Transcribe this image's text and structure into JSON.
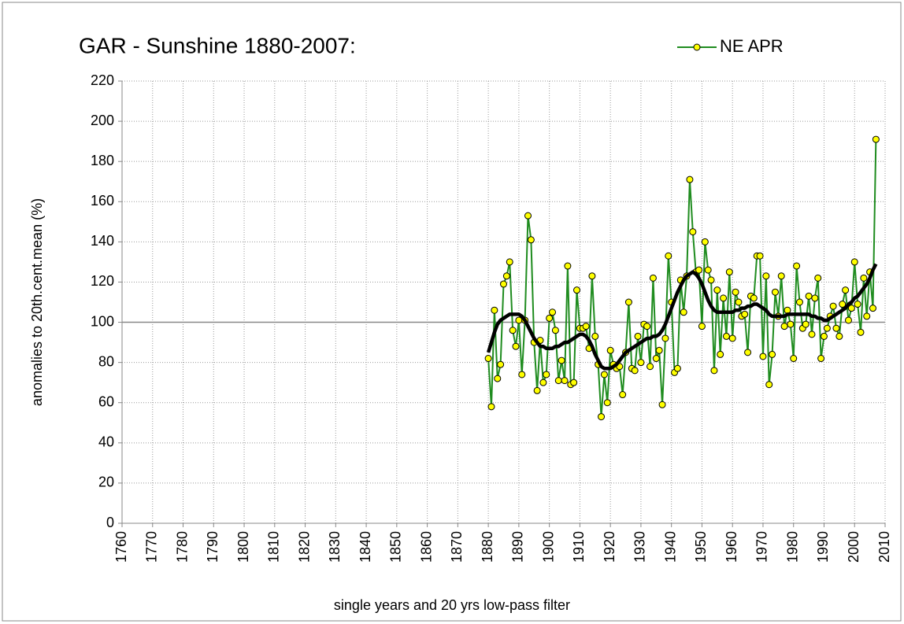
{
  "chart_data": {
    "type": "line",
    "title": "GAR - Sunshine 1880-2007:",
    "xlabel": "single years and 20 yrs low-pass filter",
    "ylabel": "anomalies to 20th.cent.mean (%)",
    "xlim": [
      1760,
      2010
    ],
    "xticks": [
      1760,
      1770,
      1780,
      1790,
      1800,
      1810,
      1820,
      1830,
      1840,
      1850,
      1860,
      1870,
      1880,
      1890,
      1900,
      1910,
      1920,
      1930,
      1940,
      1950,
      1960,
      1970,
      1980,
      1990,
      2000,
      2010
    ],
    "ylim": [
      0,
      220
    ],
    "yticks": [
      0,
      20,
      40,
      60,
      80,
      100,
      120,
      140,
      160,
      180,
      200,
      220
    ],
    "grid": true,
    "reference_line": 100,
    "legend": "top-right",
    "x": [
      1880,
      1881,
      1882,
      1883,
      1884,
      1885,
      1886,
      1887,
      1888,
      1889,
      1890,
      1891,
      1892,
      1893,
      1894,
      1895,
      1896,
      1897,
      1898,
      1899,
      1900,
      1901,
      1902,
      1903,
      1904,
      1905,
      1906,
      1907,
      1908,
      1909,
      1910,
      1911,
      1912,
      1913,
      1914,
      1915,
      1916,
      1917,
      1918,
      1919,
      1920,
      1921,
      1922,
      1923,
      1924,
      1925,
      1926,
      1927,
      1928,
      1929,
      1930,
      1931,
      1932,
      1933,
      1934,
      1935,
      1936,
      1937,
      1938,
      1939,
      1940,
      1941,
      1942,
      1943,
      1944,
      1945,
      1946,
      1947,
      1948,
      1949,
      1950,
      1951,
      1952,
      1953,
      1954,
      1955,
      1956,
      1957,
      1958,
      1959,
      1960,
      1961,
      1962,
      1963,
      1964,
      1965,
      1966,
      1967,
      1968,
      1969,
      1970,
      1971,
      1972,
      1973,
      1974,
      1975,
      1976,
      1977,
      1978,
      1979,
      1980,
      1981,
      1982,
      1983,
      1984,
      1985,
      1986,
      1987,
      1988,
      1989,
      1990,
      1991,
      1992,
      1993,
      1994,
      1995,
      1996,
      1997,
      1998,
      1999,
      2000,
      2001,
      2002,
      2003,
      2004,
      2005,
      2006,
      2007
    ],
    "series": [
      {
        "name": "NE APR",
        "color": "#1f8c1f",
        "marker_color": "#ffff00",
        "values": [
          82,
          58,
          106,
          72,
          79,
          119,
          123,
          130,
          96,
          88,
          101,
          74,
          101,
          153,
          141,
          90,
          66,
          91,
          70,
          74,
          102,
          105,
          96,
          71,
          81,
          71,
          128,
          69,
          70,
          116,
          97,
          97,
          98,
          87,
          123,
          93,
          79,
          53,
          74,
          60,
          86,
          79,
          77,
          78,
          64,
          85,
          110,
          77,
          76,
          93,
          80,
          99,
          98,
          78,
          122,
          82,
          86,
          59,
          92,
          133,
          110,
          75,
          77,
          121,
          105,
          123,
          171,
          145,
          125,
          126,
          98,
          140,
          126,
          121,
          76,
          116,
          84,
          112,
          93,
          125,
          92,
          115,
          110,
          103,
          104,
          85,
          113,
          112,
          133,
          133,
          83,
          123,
          69,
          84,
          115,
          103,
          123,
          98,
          106,
          99,
          82,
          128,
          110,
          97,
          99,
          113,
          94,
          112,
          122,
          82,
          93,
          97,
          103,
          108,
          97,
          93,
          109,
          116,
          101,
          107,
          130,
          109,
          95,
          122,
          103,
          125,
          107,
          191
        ]
      },
      {
        "color": "#000000",
        "values": [
          85,
          90,
          95,
          99,
          101,
          102,
          103,
          104,
          104,
          104,
          104,
          103,
          101,
          98,
          95,
          92,
          90,
          88,
          88,
          87,
          87,
          87,
          88,
          88,
          89,
          90,
          90,
          91,
          92,
          93,
          94,
          94,
          93,
          91,
          88,
          84,
          81,
          78,
          77,
          77,
          77,
          78,
          79,
          81,
          83,
          85,
          86,
          87,
          88,
          89,
          90,
          91,
          92,
          92,
          93,
          93,
          94,
          96,
          99,
          103,
          107,
          111,
          115,
          118,
          121,
          123,
          124,
          125,
          124,
          122,
          119,
          115,
          111,
          108,
          106,
          105,
          105,
          105,
          105,
          105,
          105,
          106,
          106,
          107,
          107,
          108,
          108,
          109,
          109,
          108,
          107,
          106,
          104,
          103,
          103,
          103,
          103,
          103,
          104,
          104,
          104,
          104,
          104,
          104,
          104,
          104,
          103,
          103,
          102,
          102,
          101,
          101,
          102,
          103,
          104,
          105,
          106,
          107,
          109,
          110,
          112,
          113,
          115,
          117,
          119,
          122,
          126,
          129
        ]
      }
    ]
  }
}
